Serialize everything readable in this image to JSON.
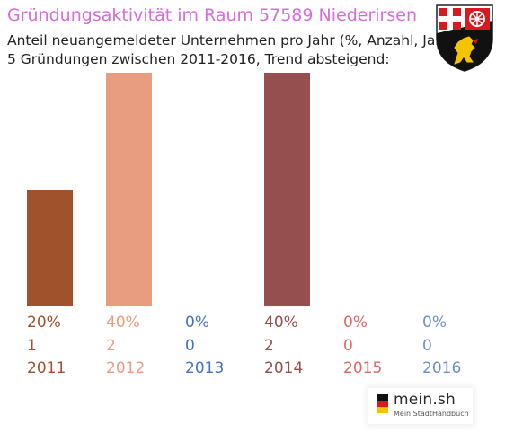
{
  "title": "Gründungsaktivität im Raum 57589 Niederirsen",
  "subtitle_line1": "Anteil neuangemeldeter Unternehmen pro Jahr (%, Anzahl, Jahr)",
  "subtitle_line2": "5 Gründungen zwischen 2011-2016, Trend absteigend:",
  "brand": {
    "name": "mein.sh",
    "tagline": "Mein StadtHandbuch"
  },
  "crest_icon": "rhineland-palatinate-coat-of-arms-icon",
  "chart_data": {
    "type": "bar",
    "categories": [
      "2011",
      "2012",
      "2013",
      "2014",
      "2015",
      "2016"
    ],
    "values": [
      20,
      40,
      0,
      40,
      0,
      0
    ],
    "percent_labels": [
      "20%",
      "40%",
      "0%",
      "40%",
      "0%",
      "0%"
    ],
    "count_labels": [
      "1",
      "2",
      "0",
      "2",
      "0",
      "0"
    ],
    "colors": [
      "#a0522d",
      "#e99d80",
      "#4472c4",
      "#954f4f",
      "#e06666",
      "#6c91c9"
    ],
    "ylim": [
      0,
      40
    ],
    "grid": false,
    "legend": "none",
    "title": "Gründungsaktivität im Raum 57589 Niederirsen",
    "xlabel": "",
    "ylabel": ""
  }
}
